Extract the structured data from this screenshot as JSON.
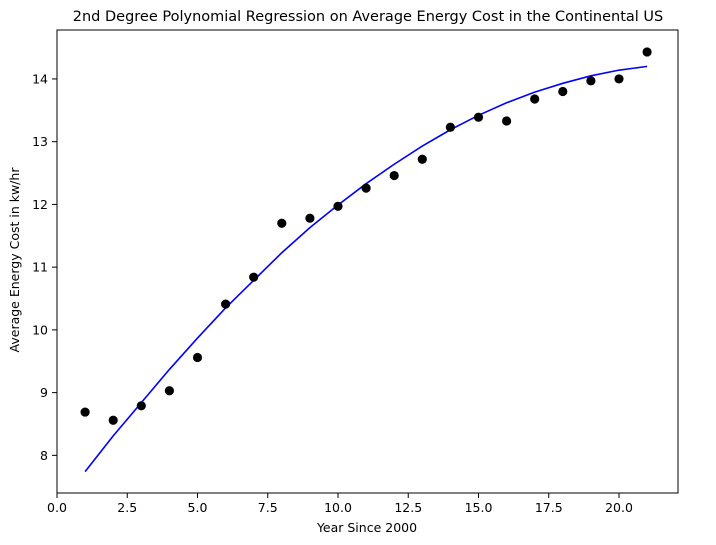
{
  "chart_data": {
    "type": "scatter",
    "title": "2nd Degree Polynomial Regression on Average Energy Cost in the Continental US",
    "xlabel": "Year Since 2000",
    "ylabel": "Average Energy Cost in kw/hr",
    "xlim": [
      0,
      22.1
    ],
    "ylim": [
      7.4,
      14.78
    ],
    "xticks": [
      "0.0",
      "2.5",
      "5.0",
      "7.5",
      "10.0",
      "12.5",
      "15.0",
      "17.5",
      "20.0"
    ],
    "yticks": [
      "8",
      "9",
      "10",
      "11",
      "12",
      "13",
      "14"
    ],
    "grid": false,
    "series": [
      {
        "kind": "points",
        "color": "#000000",
        "x": [
          1,
          2,
          3,
          4,
          5,
          6,
          7,
          8,
          9,
          10,
          11,
          12,
          13,
          14,
          15,
          16,
          17,
          18,
          19,
          20,
          21
        ],
        "y": [
          8.69,
          8.56,
          8.79,
          9.03,
          9.56,
          10.41,
          10.84,
          11.7,
          11.78,
          11.97,
          12.26,
          12.46,
          12.72,
          13.23,
          13.39,
          13.33,
          13.68,
          13.8,
          13.97,
          14.0,
          14.43
        ]
      },
      {
        "kind": "fit-line",
        "color": "#0000ff",
        "x": [
          1,
          2,
          3,
          4,
          5,
          6,
          7,
          8,
          9,
          10,
          11,
          12,
          13,
          14,
          15,
          16,
          17,
          18,
          19,
          20,
          21
        ],
        "y": [
          7.74,
          8.31,
          8.84,
          9.37,
          9.87,
          10.35,
          10.79,
          11.23,
          11.63,
          11.99,
          12.33,
          12.64,
          12.93,
          13.19,
          13.42,
          13.62,
          13.79,
          13.93,
          14.05,
          14.14,
          14.2
        ]
      }
    ]
  }
}
